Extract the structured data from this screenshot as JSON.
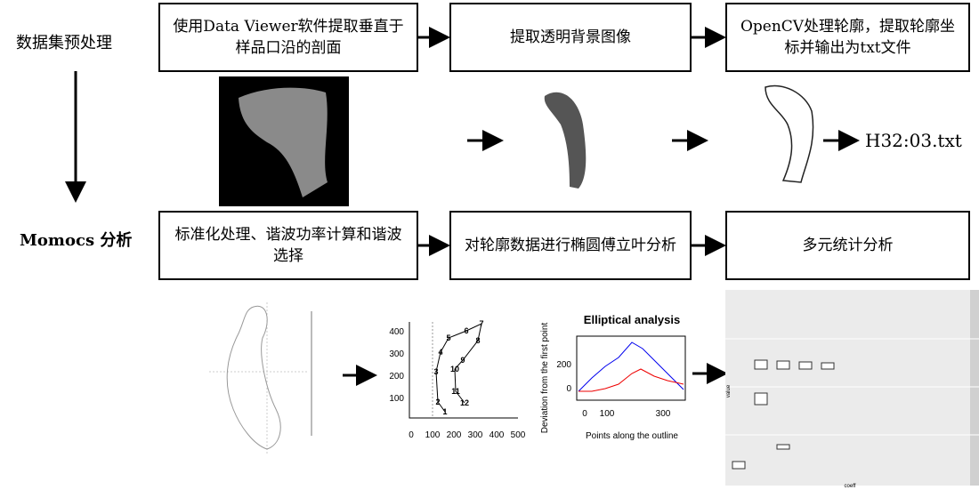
{
  "stages": [
    "数据集预处理",
    "Momocs 分析"
  ],
  "preprocessing_steps": [
    "使用Data Viewer软件提取垂直于样品口沿的剖面",
    "提取透明背景图像",
    "OpenCV处理轮廓，提取轮廓坐标并输出为txt文件"
  ],
  "output_file": "H32:03.txt",
  "analysis_steps": [
    "标准化处理、谐波功率计算和谐波选择",
    "对轮廓数据进行椭圆傅立叶分析",
    "多元统计分析"
  ],
  "outline_plot": {
    "yticks": [
      "400",
      "300",
      "200",
      "100"
    ],
    "xticks": [
      "0",
      "100",
      "200",
      "300",
      "400",
      "500"
    ],
    "point_labels": [
      "1",
      "2",
      "3",
      "4",
      "5",
      "6",
      "7",
      "8",
      "9",
      "10",
      "11",
      "12"
    ]
  },
  "elliptical_plot": {
    "title": "Elliptical analysis",
    "ylabel": "Deviation from the first point",
    "xlabel": "Points along the outline",
    "yticks": [
      "200",
      "0"
    ],
    "xticks": [
      "0",
      "100",
      "300"
    ]
  },
  "boxplot": {
    "xlabel": "coeff",
    "ylabel": "value"
  }
}
